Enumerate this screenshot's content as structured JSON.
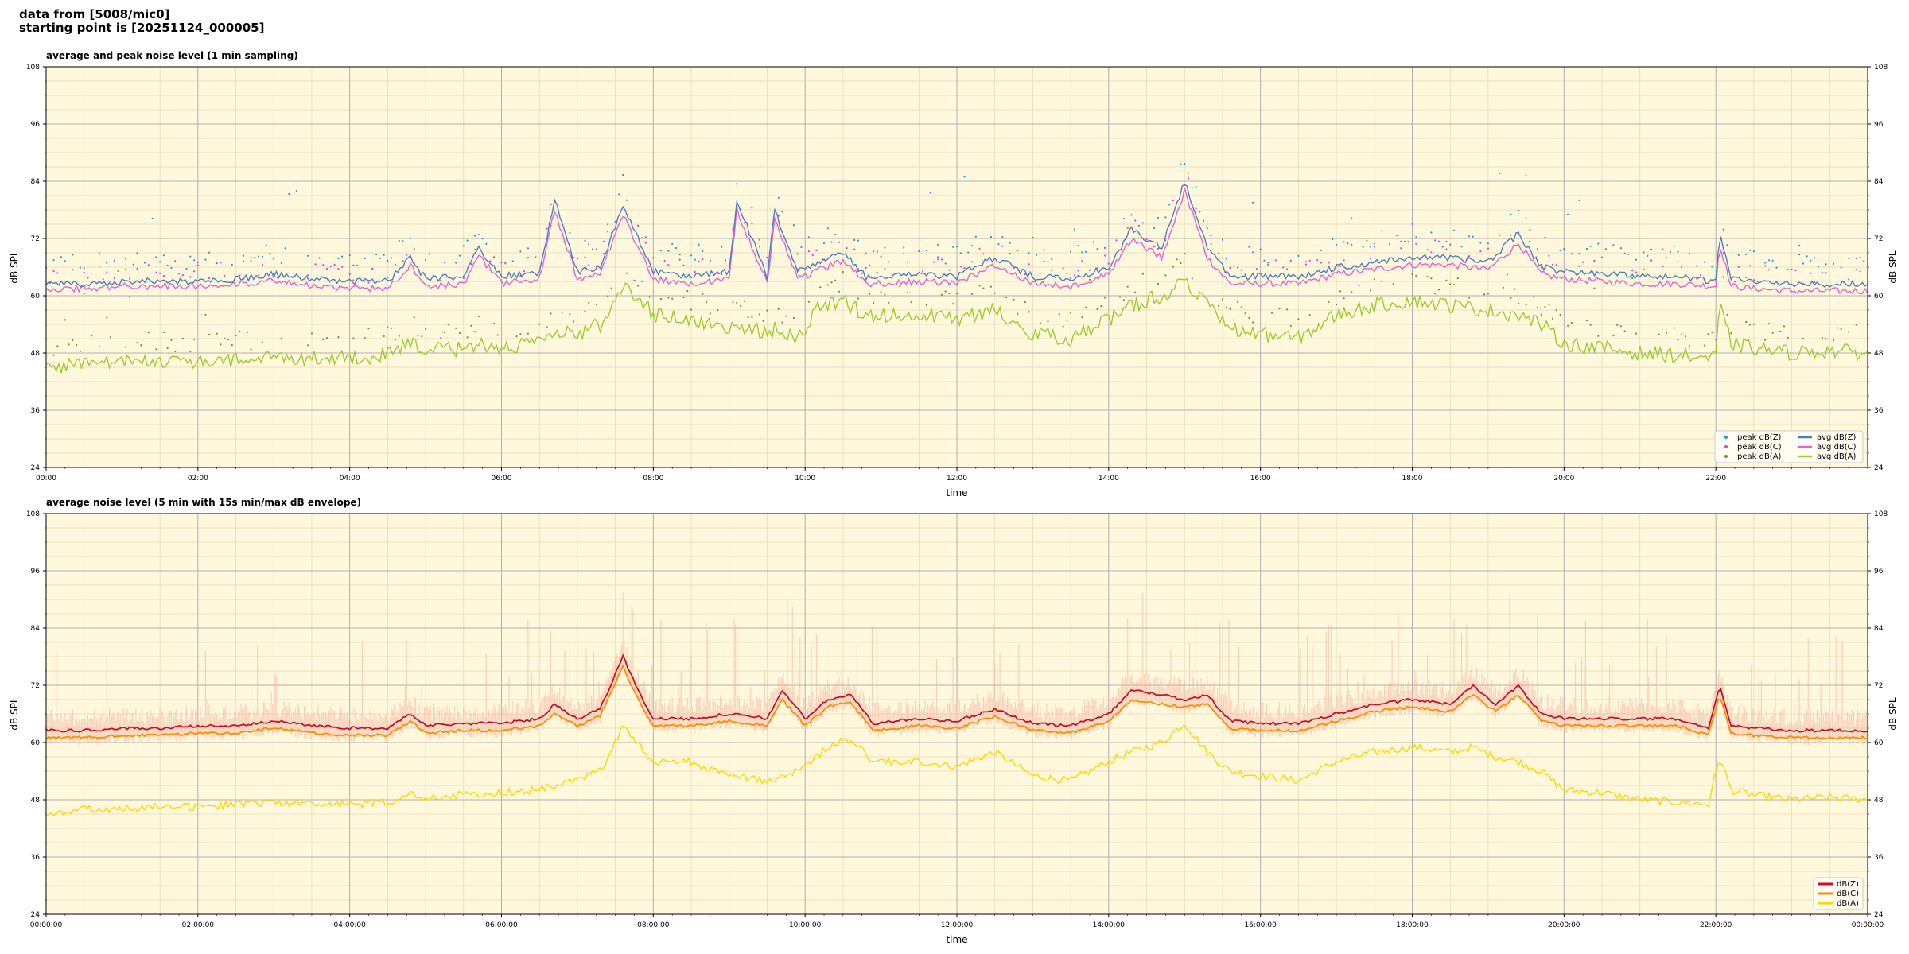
{
  "header": {
    "line1": "data from [5008/mic0]",
    "line2": "starting point is [20251124_000005]"
  },
  "colors": {
    "background": "#fff8dc",
    "grid_major": "#b0b0b0",
    "grid_minor": "#e2d9b4",
    "peak_z": "#1f9bd8",
    "peak_c": "#e23de6",
    "peak_a": "#5a9a3a",
    "avg_z": "#4a7fc1",
    "avg_c": "#e660d8",
    "avg_a": "#9acd32",
    "env_fill": "#f4b2a0",
    "db_z": "#c8102e",
    "db_c": "#ff8c00",
    "db_a": "#ffd700"
  },
  "chart_data": [
    {
      "type": "line",
      "title": "average and peak noise level (1 min sampling)",
      "xlabel": "time",
      "ylabel": "dB SPL",
      "xlim_hours": [
        0,
        24
      ],
      "ylim": [
        24,
        108
      ],
      "yticks": [
        24,
        36,
        48,
        60,
        72,
        84,
        96,
        108
      ],
      "xtick_hours": [
        0,
        2,
        4,
        6,
        8,
        10,
        12,
        14,
        16,
        18,
        20,
        22
      ],
      "xtick_labels": [
        "00:00",
        "02:00",
        "04:00",
        "06:00",
        "08:00",
        "10:00",
        "12:00",
        "14:00",
        "16:00",
        "18:00",
        "20:00",
        "22:00"
      ],
      "grid": true,
      "legend_position": "lower-right",
      "series": [
        {
          "name": "peak dB(Z)",
          "kind": "scatter",
          "color_key": "peak_z",
          "offset": 2.5
        },
        {
          "name": "peak dB(C)",
          "kind": "scatter",
          "color_key": "peak_c",
          "offset": 1.0
        },
        {
          "name": "peak dB(A)",
          "kind": "scatter",
          "color_key": "peak_a",
          "offset": 2.0
        },
        {
          "name": "avg dB(Z)",
          "kind": "line",
          "color_key": "avg_z",
          "base": "Z"
        },
        {
          "name": "avg dB(C)",
          "kind": "line",
          "color_key": "avg_c",
          "base": "C"
        },
        {
          "name": "avg dB(A)",
          "kind": "line",
          "color_key": "avg_a",
          "base": "A"
        }
      ],
      "points": [
        [
          0.0,
          62.5,
          61.5,
          45.0
        ],
        [
          0.5,
          62.5,
          61.5,
          46.0
        ],
        [
          1.0,
          63.0,
          62.0,
          46.0
        ],
        [
          1.5,
          63.0,
          62.0,
          46.5
        ],
        [
          2.0,
          63.0,
          62.0,
          46.0
        ],
        [
          2.5,
          63.5,
          62.5,
          46.5
        ],
        [
          3.0,
          64.5,
          63.0,
          47.0
        ],
        [
          3.5,
          63.5,
          62.0,
          47.0
        ],
        [
          4.0,
          63.0,
          61.5,
          47.0
        ],
        [
          4.5,
          63.0,
          61.5,
          47.5
        ],
        [
          4.8,
          68.0,
          66.5,
          50.0
        ],
        [
          5.0,
          63.5,
          62.0,
          48.5
        ],
        [
          5.5,
          64.0,
          62.5,
          49.0
        ],
        [
          5.7,
          70.0,
          68.5,
          50.0
        ],
        [
          6.0,
          64.0,
          62.5,
          49.0
        ],
        [
          6.5,
          65.0,
          63.5,
          50.0
        ],
        [
          6.7,
          80.0,
          78.0,
          52.0
        ],
        [
          7.0,
          65.0,
          63.5,
          52.0
        ],
        [
          7.3,
          66.0,
          64.5,
          54.0
        ],
        [
          7.6,
          79.0,
          77.0,
          62.0
        ],
        [
          7.8,
          72.0,
          70.0,
          60.0
        ],
        [
          8.0,
          65.0,
          63.5,
          56.0
        ],
        [
          8.5,
          64.0,
          62.5,
          55.0
        ],
        [
          9.0,
          65.0,
          63.5,
          53.0
        ],
        [
          9.1,
          80.0,
          78.0,
          54.0
        ],
        [
          9.5,
          64.0,
          62.5,
          52.0
        ],
        [
          9.6,
          78.0,
          76.0,
          53.0
        ],
        [
          9.9,
          65.0,
          63.5,
          51.0
        ],
        [
          10.2,
          67.0,
          65.5,
          58.0
        ],
        [
          10.5,
          69.0,
          67.5,
          59.0
        ],
        [
          10.8,
          64.0,
          62.5,
          56.0
        ],
        [
          11.5,
          64.5,
          63.0,
          56.0
        ],
        [
          12.0,
          64.0,
          62.5,
          55.0
        ],
        [
          12.5,
          68.0,
          66.5,
          57.0
        ],
        [
          13.0,
          64.0,
          62.5,
          52.0
        ],
        [
          13.5,
          63.5,
          62.0,
          51.0
        ],
        [
          14.0,
          66.0,
          64.5,
          55.0
        ],
        [
          14.3,
          74.0,
          72.0,
          58.0
        ],
        [
          14.7,
          70.0,
          68.0,
          60.0
        ],
        [
          15.0,
          84.0,
          82.0,
          63.0
        ],
        [
          15.3,
          70.0,
          68.0,
          58.0
        ],
        [
          15.6,
          64.0,
          62.5,
          53.0
        ],
        [
          16.0,
          64.0,
          62.5,
          52.0
        ],
        [
          16.5,
          64.0,
          62.5,
          51.0
        ],
        [
          17.0,
          66.0,
          64.5,
          56.0
        ],
        [
          17.5,
          67.0,
          65.5,
          58.0
        ],
        [
          18.0,
          68.0,
          66.5,
          59.0
        ],
        [
          18.5,
          68.0,
          66.5,
          58.0
        ],
        [
          19.0,
          67.0,
          65.5,
          57.0
        ],
        [
          19.4,
          73.0,
          71.0,
          56.0
        ],
        [
          19.7,
          66.0,
          64.5,
          54.0
        ],
        [
          20.0,
          65.0,
          63.5,
          50.0
        ],
        [
          20.5,
          64.5,
          63.0,
          49.0
        ],
        [
          21.0,
          64.0,
          62.5,
          48.0
        ],
        [
          21.5,
          64.0,
          62.5,
          47.5
        ],
        [
          22.0,
          63.0,
          62.0,
          47.0
        ],
        [
          22.05,
          73.0,
          71.0,
          58.0
        ],
        [
          22.2,
          63.5,
          62.0,
          50.0
        ],
        [
          22.5,
          63.0,
          61.5,
          49.0
        ],
        [
          23.0,
          62.5,
          61.0,
          48.0
        ],
        [
          23.5,
          62.5,
          61.0,
          48.5
        ],
        [
          24.0,
          62.5,
          61.0,
          48.0
        ]
      ]
    },
    {
      "type": "line",
      "title": "average noise level (5 min with 15s min/max dB envelope)",
      "xlabel": "time",
      "ylabel": "dB SPL",
      "xlim_hours": [
        0,
        24
      ],
      "ylim": [
        24,
        108
      ],
      "yticks": [
        24,
        36,
        48,
        60,
        72,
        84,
        96,
        108
      ],
      "xtick_hours": [
        0,
        2,
        4,
        6,
        8,
        10,
        12,
        14,
        16,
        18,
        20,
        22,
        24
      ],
      "xtick_labels": [
        "00:00:00",
        "02:00:00",
        "04:00:00",
        "06:00:00",
        "08:00:00",
        "10:00:00",
        "12:00:00",
        "14:00:00",
        "16:00:00",
        "18:00:00",
        "20:00:00",
        "22:00:00",
        "00:00:00"
      ],
      "grid": true,
      "legend_position": "lower-right",
      "series": [
        {
          "name": "dB(Z)",
          "kind": "line",
          "color_key": "db_z",
          "base": "Z"
        },
        {
          "name": "dB(C)",
          "kind": "line",
          "color_key": "db_c",
          "base": "C"
        },
        {
          "name": "dB(A)",
          "kind": "line",
          "color_key": "db_a",
          "base": "A"
        }
      ],
      "points": [
        [
          0.0,
          62.5,
          61.0,
          45.0
        ],
        [
          0.5,
          62.5,
          61.0,
          46.0
        ],
        [
          1.0,
          63.0,
          61.5,
          46.0
        ],
        [
          1.5,
          63.0,
          61.5,
          46.5
        ],
        [
          2.0,
          63.5,
          62.0,
          46.5
        ],
        [
          2.5,
          63.5,
          62.0,
          47.0
        ],
        [
          3.0,
          64.5,
          63.0,
          47.5
        ],
        [
          3.5,
          63.5,
          62.0,
          47.0
        ],
        [
          4.0,
          63.0,
          61.5,
          47.0
        ],
        [
          4.5,
          63.0,
          61.5,
          47.5
        ],
        [
          4.8,
          66.0,
          64.5,
          49.0
        ],
        [
          5.0,
          63.5,
          62.0,
          48.5
        ],
        [
          5.5,
          64.0,
          62.5,
          49.0
        ],
        [
          6.0,
          64.0,
          62.5,
          49.5
        ],
        [
          6.5,
          65.0,
          63.5,
          50.0
        ],
        [
          6.7,
          68.0,
          66.0,
          51.0
        ],
        [
          7.0,
          65.0,
          63.5,
          52.0
        ],
        [
          7.3,
          67.0,
          65.5,
          54.0
        ],
        [
          7.6,
          78.0,
          76.0,
          63.0
        ],
        [
          7.8,
          71.0,
          69.0,
          60.0
        ],
        [
          8.0,
          65.0,
          63.5,
          56.0
        ],
        [
          8.5,
          65.0,
          63.5,
          56.0
        ],
        [
          9.0,
          66.0,
          64.5,
          53.0
        ],
        [
          9.5,
          65.0,
          63.5,
          52.0
        ],
        [
          9.7,
          71.0,
          69.0,
          53.0
        ],
        [
          10.0,
          65.0,
          63.5,
          55.0
        ],
        [
          10.3,
          69.0,
          67.5,
          59.0
        ],
        [
          10.6,
          70.0,
          68.5,
          61.0
        ],
        [
          10.9,
          64.0,
          62.5,
          56.0
        ],
        [
          11.5,
          65.0,
          63.5,
          56.0
        ],
        [
          12.0,
          64.5,
          63.0,
          55.0
        ],
        [
          12.5,
          67.0,
          65.5,
          58.0
        ],
        [
          13.0,
          64.0,
          62.5,
          53.0
        ],
        [
          13.5,
          63.5,
          62.0,
          52.0
        ],
        [
          14.0,
          66.0,
          64.5,
          56.0
        ],
        [
          14.3,
          71.0,
          69.0,
          58.0
        ],
        [
          14.7,
          70.0,
          68.0,
          60.0
        ],
        [
          15.0,
          69.0,
          67.5,
          64.0
        ],
        [
          15.3,
          70.0,
          68.0,
          58.0
        ],
        [
          15.6,
          64.5,
          63.0,
          54.0
        ],
        [
          16.0,
          64.0,
          62.5,
          53.0
        ],
        [
          16.5,
          64.0,
          62.5,
          52.0
        ],
        [
          17.0,
          66.0,
          64.5,
          56.0
        ],
        [
          17.5,
          68.0,
          66.5,
          58.0
        ],
        [
          18.0,
          69.0,
          67.5,
          59.0
        ],
        [
          18.5,
          68.0,
          66.5,
          58.0
        ],
        [
          18.8,
          72.0,
          70.0,
          59.0
        ],
        [
          19.1,
          68.0,
          66.5,
          57.0
        ],
        [
          19.4,
          72.0,
          70.0,
          56.0
        ],
        [
          19.7,
          66.0,
          64.5,
          54.0
        ],
        [
          20.0,
          65.0,
          63.5,
          50.0
        ],
        [
          20.5,
          65.0,
          63.5,
          49.5
        ],
        [
          21.0,
          65.0,
          63.5,
          48.0
        ],
        [
          21.5,
          65.0,
          63.5,
          47.5
        ],
        [
          21.9,
          63.0,
          61.5,
          47.0
        ],
        [
          22.05,
          72.0,
          70.0,
          57.0
        ],
        [
          22.2,
          63.5,
          62.0,
          50.0
        ],
        [
          22.5,
          63.0,
          61.5,
          49.0
        ],
        [
          23.0,
          62.5,
          61.0,
          48.0
        ],
        [
          23.5,
          62.5,
          61.0,
          48.5
        ],
        [
          24.0,
          62.5,
          61.0,
          48.0
        ]
      ]
    }
  ]
}
